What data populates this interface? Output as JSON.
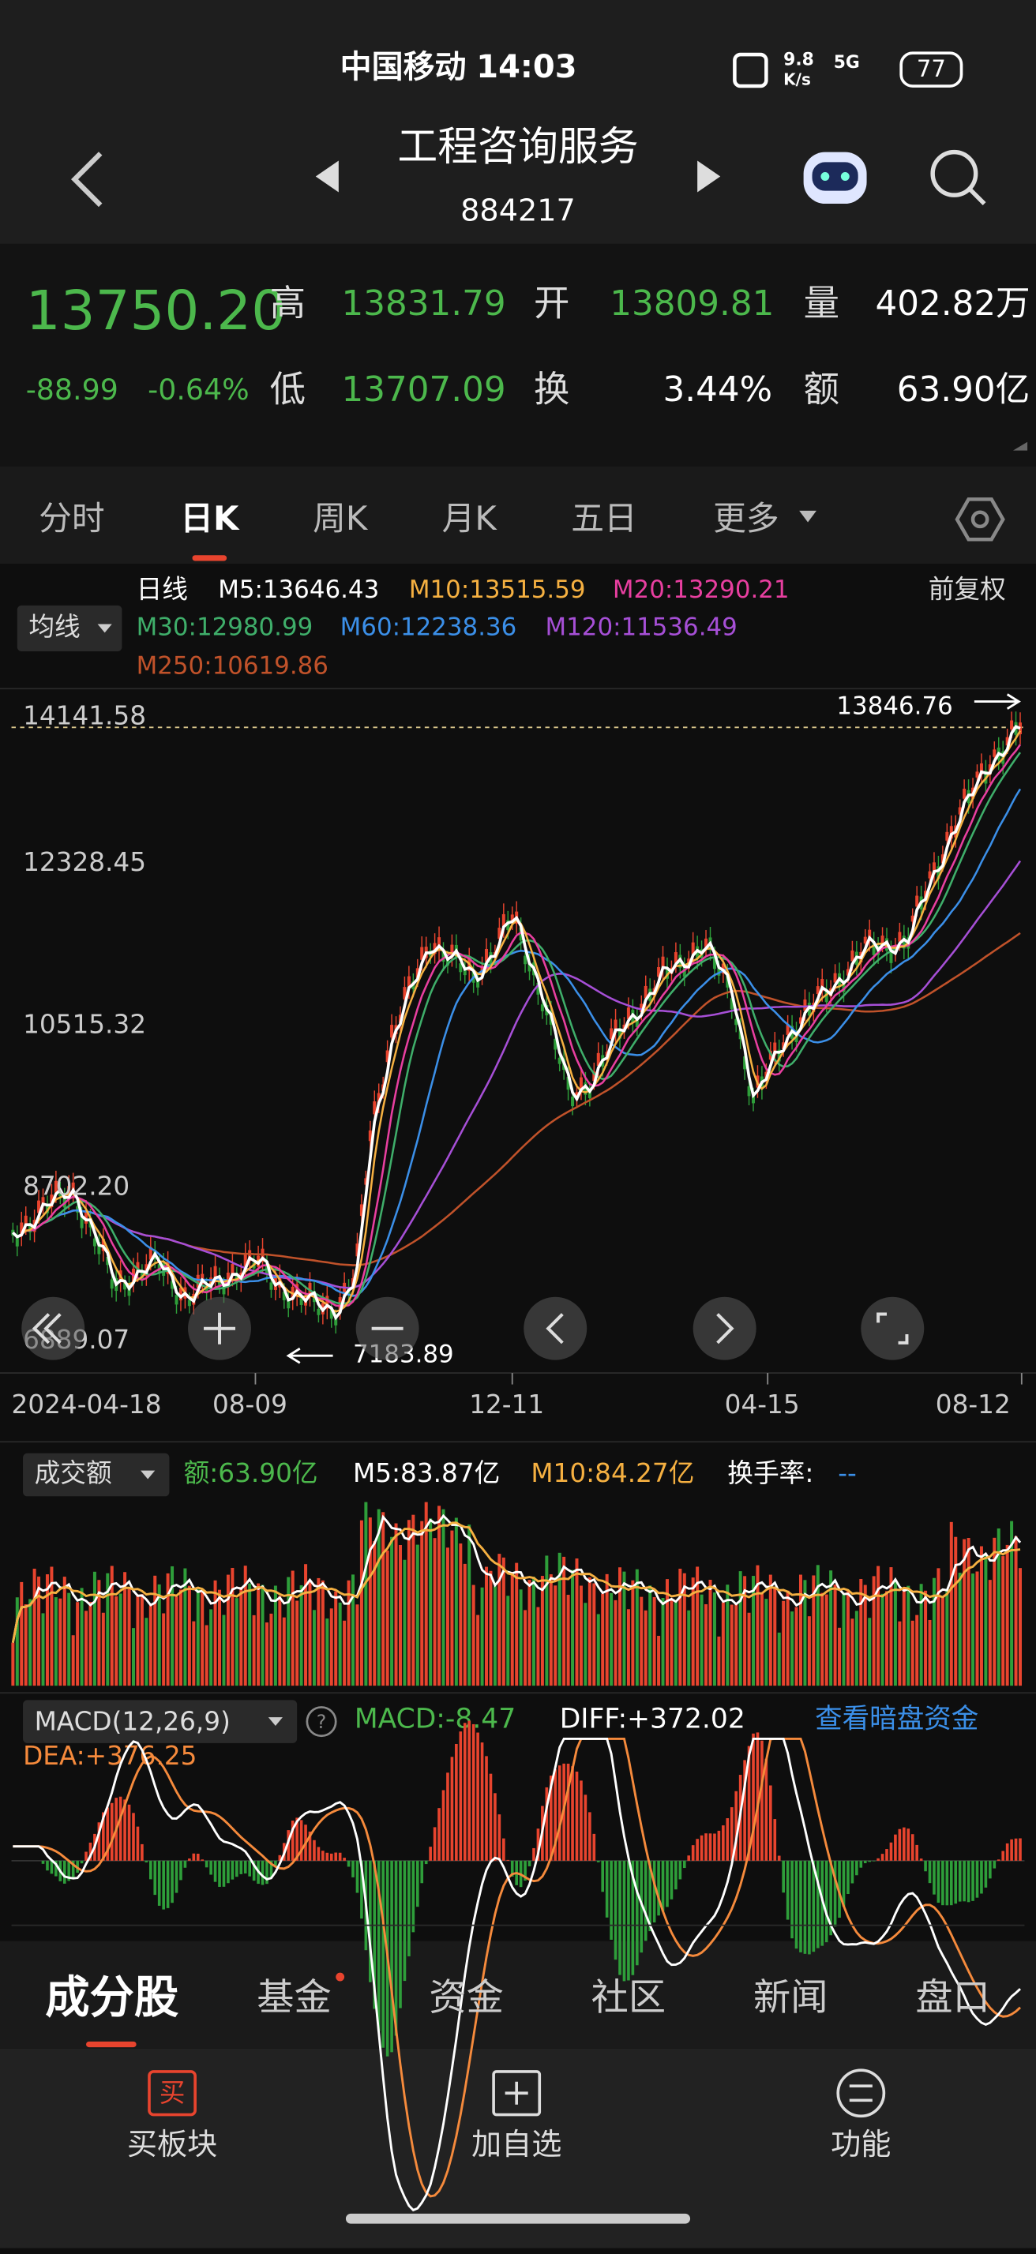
{
  "status": {
    "carrier": "中国移动",
    "time": "14:03",
    "speed": "9.8",
    "speed_unit": "K/s",
    "network": "5G",
    "battery": "77"
  },
  "header": {
    "title": "工程咨询服务",
    "code": "884217"
  },
  "quote": {
    "price": "13750.20",
    "change": "-88.99",
    "pct": "-0.64%",
    "fields": [
      {
        "label": "高",
        "value": "13831.79"
      },
      {
        "label": "开",
        "value": "13809.81"
      },
      {
        "label": "量",
        "value": "402.82万"
      },
      {
        "label": "低",
        "value": "13707.09"
      },
      {
        "label": "换",
        "value": "3.44%"
      },
      {
        "label": "额",
        "value": "63.90亿"
      }
    ]
  },
  "tabs": [
    "分时",
    "日K",
    "周K",
    "月K",
    "五日",
    "更多"
  ],
  "ma": {
    "selector": "均线",
    "period": "日线",
    "adjust": "前复权",
    "items": [
      "M5:13646.43",
      "M10:13515.59",
      "M20:13290.21",
      "M30:12980.99",
      "M60:12238.36",
      "M120:11536.49",
      "M250:10619.86"
    ]
  },
  "price_axis": [
    "14141.58",
    "12328.45",
    "10515.32",
    "8702.20",
    "6889.07"
  ],
  "max_marker": "13846.76",
  "min_marker": "7183.89",
  "dates": [
    "2024-04-18",
    "08-09",
    "12-11",
    "04-15",
    "08-12"
  ],
  "volume": {
    "selector": "成交额",
    "amount": "额:63.90亿",
    "m5": "M5:83.87亿",
    "m10": "M10:84.27亿",
    "turnover": "换手率:",
    "turnover_value": "--"
  },
  "macd": {
    "selector": "MACD(12,26,9)",
    "macd": "MACD:-8.47",
    "diff": "DIFF:+372.02",
    "dea": "DEA:+376.25",
    "link": "查看暗盘资金"
  },
  "bottom_tabs": [
    "成分股",
    "基金",
    "资金",
    "社区",
    "新闻",
    "盘口"
  ],
  "actions": {
    "buy_icon": "买",
    "items": [
      "买板块",
      "加自选",
      "功能"
    ]
  }
}
